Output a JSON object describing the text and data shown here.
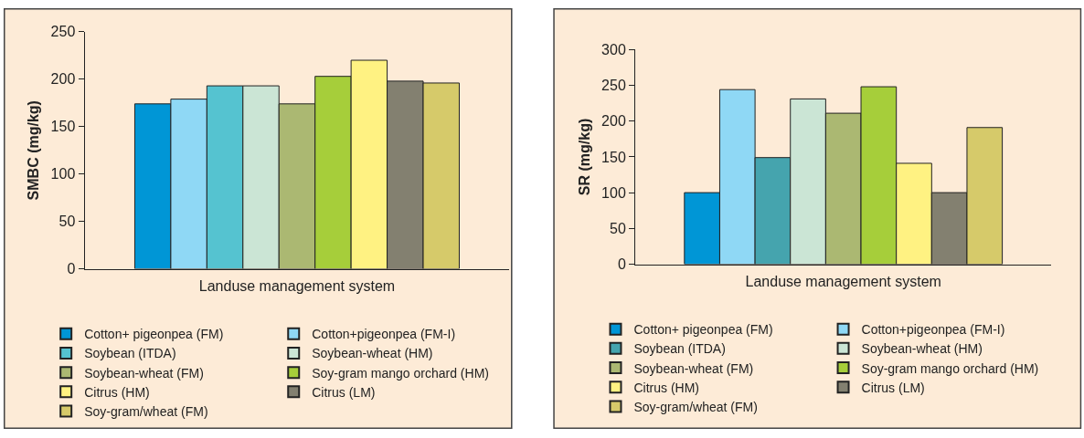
{
  "chart_data": [
    {
      "type": "bar",
      "categories": [
        null
      ],
      "xlabel": "Landuse management system",
      "ylabel": "SMBC (mg/kg)",
      "ylim": [
        0,
        250
      ],
      "yticks": [
        0,
        50,
        100,
        150,
        200,
        250
      ],
      "grid": false,
      "legend": "bottom",
      "series": [
        {
          "name": "Cotton+ pigeonpea (FM)",
          "color": "#0096d6",
          "values": [
            174
          ]
        },
        {
          "name": "Cotton+pigeonpea (FM-I)",
          "color": "#8fd8f5",
          "values": [
            179
          ]
        },
        {
          "name": "Soybean (ITDA)",
          "color": "#55c3d0",
          "values": [
            193
          ]
        },
        {
          "name": "Soybean-wheat (HM)",
          "color": "#cbe5d5",
          "values": [
            193
          ]
        },
        {
          "name": "Soybean-wheat (FM)",
          "color": "#abb872",
          "values": [
            174
          ]
        },
        {
          "name": "Soy-gram mango orchard (HM)",
          "color": "#a6ce3a",
          "values": [
            203
          ]
        },
        {
          "name": "Citrus (HM)",
          "color": "#fff282",
          "values": [
            220
          ]
        },
        {
          "name": "Citrus (LM)",
          "color": "#838070",
          "values": [
            198
          ]
        },
        {
          "name": "Soy-gram/wheat (FM)",
          "color": "#d6ca6a",
          "values": [
            196
          ]
        }
      ]
    },
    {
      "type": "bar",
      "categories": [
        null
      ],
      "xlabel": "Landuse management system",
      "ylabel": "SR (mg/kg)",
      "ylim": [
        0,
        300
      ],
      "yticks": [
        0,
        50,
        100,
        150,
        200,
        250,
        300
      ],
      "grid": false,
      "legend": "bottom",
      "series": [
        {
          "name": "Cotton+ pigeonpea (FM)",
          "color": "#0096d6",
          "values": [
            100
          ]
        },
        {
          "name": "Cotton+pigeonpea (FM-I)",
          "color": "#8fd8f5",
          "values": [
            244
          ]
        },
        {
          "name": "Soybean (ITDA)",
          "color": "#45a4ae",
          "values": [
            149
          ]
        },
        {
          "name": "Soybean-wheat (HM)",
          "color": "#cbe5d5",
          "values": [
            231
          ]
        },
        {
          "name": "Soybean-wheat (FM)",
          "color": "#abb872",
          "values": [
            211
          ]
        },
        {
          "name": "Soy-gram mango orchard (HM)",
          "color": "#a6ce3a",
          "values": [
            248
          ]
        },
        {
          "name": "Citrus (HM)",
          "color": "#fff282",
          "values": [
            141
          ]
        },
        {
          "name": "Citrus (LM)",
          "color": "#838070",
          "values": [
            100
          ]
        },
        {
          "name": "Soy-gram/wheat (FM)",
          "color": "#d6ca6a",
          "values": [
            191
          ]
        }
      ]
    }
  ]
}
